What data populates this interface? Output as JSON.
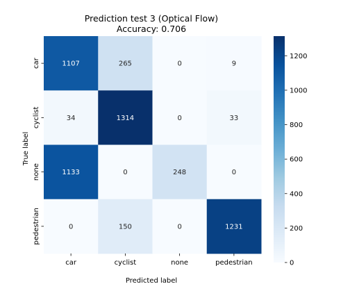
{
  "chart_data": {
    "type": "heatmap",
    "title": "Prediction test 3 (Optical Flow)",
    "subtitle": "Accuracy: 0.706",
    "xlabel": "Predicted label",
    "ylabel": "True label",
    "x_categories": [
      "car",
      "cyclist",
      "none",
      "pedestrian"
    ],
    "y_categories": [
      "car",
      "cyclist",
      "none",
      "pedestrian"
    ],
    "values": [
      [
        1107,
        265,
        0,
        9
      ],
      [
        34,
        1314,
        0,
        33
      ],
      [
        1133,
        0,
        248,
        0
      ],
      [
        0,
        150,
        0,
        1231
      ]
    ],
    "colormap": "Blues",
    "color_range": [
      0,
      1314
    ],
    "colorbar_ticks": [
      "0",
      "200",
      "400",
      "600",
      "800",
      "1000",
      "1200"
    ],
    "colorbar_tick_values": [
      0,
      200,
      400,
      600,
      800,
      1000,
      1200
    ],
    "colors": {
      "low": "#f7fbff",
      "high": "#08306b"
    }
  }
}
